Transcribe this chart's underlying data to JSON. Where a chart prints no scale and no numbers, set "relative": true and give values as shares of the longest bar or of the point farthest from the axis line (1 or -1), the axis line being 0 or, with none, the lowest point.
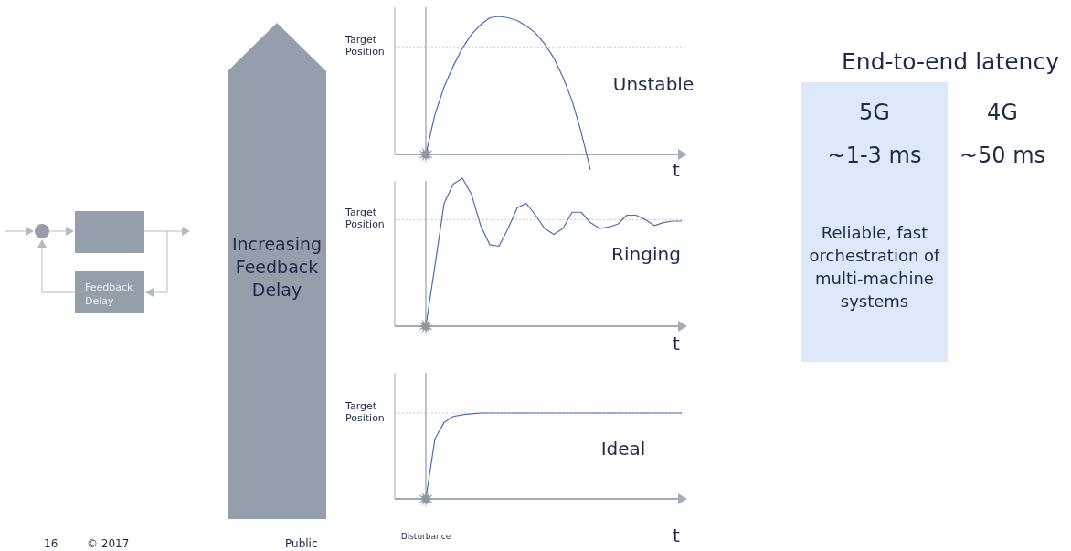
{
  "chart_data": [
    {
      "type": "line",
      "relative": true,
      "xlabel": "t",
      "categories": [
        null,
        null,
        null,
        null,
        null,
        null,
        null,
        null,
        null,
        null,
        null,
        null,
        null,
        null,
        null,
        null,
        null,
        null,
        null,
        null,
        null,
        null,
        null,
        null,
        null,
        null,
        null,
        null,
        null
      ],
      "series": [
        {
          "color": "#4a6db0",
          "values": [
            0,
            0.29,
            0.49,
            0.64,
            0.77,
            0.87,
            0.94,
            0.99,
            1,
            0.99,
            0.97,
            0.93,
            0.88,
            0.8,
            0.7,
            0.56,
            0.39,
            0.16,
            -0.11,
            null,
            null,
            null,
            null,
            null,
            null,
            null,
            null,
            null,
            null
          ]
        }
      ],
      "ref_lines": [
        {
          "axis": "y",
          "value": 0.78,
          "label": "Target Position",
          "color": "#c8ccd2",
          "line_style": "dotted"
        }
      ],
      "annotations": [
        "Unstable"
      ]
    },
    {
      "type": "line",
      "relative": true,
      "xlabel": "t",
      "categories": [
        null,
        null,
        null,
        null,
        null,
        null,
        null,
        null,
        null,
        null,
        null,
        null,
        null,
        null,
        null,
        null,
        null,
        null,
        null,
        null,
        null,
        null,
        null,
        null,
        null,
        null,
        null,
        null,
        null
      ],
      "series": [
        {
          "color": "#4a6db0",
          "values": [
            0,
            0.41,
            0.83,
            0.96,
            1,
            0.89,
            0.68,
            0.55,
            0.54,
            0.66,
            0.8,
            0.83,
            0.75,
            0.66,
            0.62,
            0.66,
            0.77,
            0.77,
            0.7,
            0.66,
            0.67,
            0.69,
            0.75,
            0.75,
            0.72,
            0.68,
            0.7,
            0.71,
            0.71
          ]
        }
      ],
      "ref_lines": [
        {
          "axis": "y",
          "value": 0.72,
          "label": "Target Position",
          "color": "#c8ccd2",
          "line_style": "dotted"
        }
      ],
      "annotations": [
        "Ringing"
      ]
    },
    {
      "type": "line",
      "relative": true,
      "xlabel": "t",
      "categories": [
        null,
        null,
        null,
        null,
        null,
        null,
        null,
        null,
        null,
        null,
        null,
        null,
        null,
        null,
        null,
        null,
        null,
        null,
        null,
        null,
        null,
        null,
        null,
        null,
        null,
        null,
        null,
        null,
        null
      ],
      "series": [
        {
          "color": "#4a6db0",
          "values": [
            0,
            0.7,
            0.89,
            0.96,
            0.98,
            0.99,
            1,
            1,
            1,
            1,
            1,
            1,
            1,
            1,
            1,
            1,
            1,
            1,
            1,
            1,
            1,
            1,
            1,
            1,
            1,
            1,
            1,
            1,
            1
          ]
        }
      ],
      "ref_lines": [
        {
          "axis": "y",
          "value": 1,
          "label": "Target Position",
          "color": "#c8ccd2",
          "line_style": "dotted"
        }
      ],
      "annotations": [
        "Ideal",
        "Disturbance"
      ]
    },
    {
      "type": "other",
      "title": "End-to-end latency",
      "annotations": [
        "5G",
        "4G",
        "~1-3 ms",
        "~50 ms",
        "Reliable, fast orchestration of multi-machine systems"
      ]
    },
    {
      "type": "other",
      "annotations": [
        "Feedback Delay",
        "Increasing Feedback Delay",
        "16",
        "© 2017",
        "Public"
      ]
    }
  ]
}
